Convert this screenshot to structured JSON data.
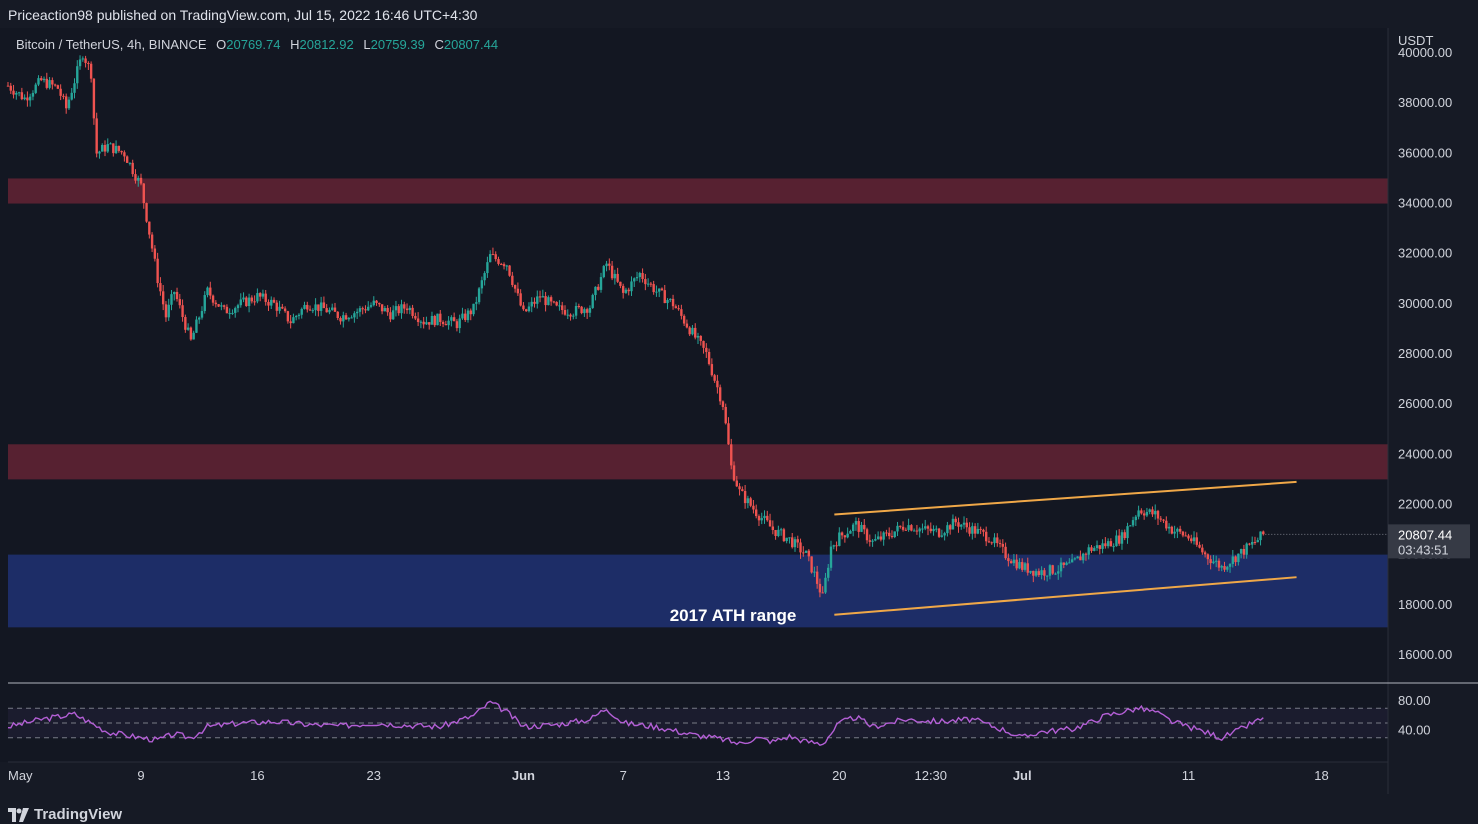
{
  "header": {
    "publisher_line": "Priceaction98 published on TradingView.com, Jul 15, 2022 16:46 UTC+4:30"
  },
  "legend": {
    "symbol": "Bitcoin / TetherUS, 4h, BINANCE",
    "o_label": "O",
    "o_value": "20769.74",
    "h_label": "H",
    "h_value": "20812.92",
    "l_label": "L",
    "l_value": "20759.39",
    "c_label": "C",
    "c_value": "20807.44"
  },
  "footer": {
    "brand": "TradingView"
  },
  "colors": {
    "background": "#131722",
    "up": "#26a69a",
    "down": "#ef5350",
    "resistance_zone": "#5b2233",
    "ath_zone": "#1e2e6b",
    "channel": "#f0a848",
    "rsi": "#b45fd6"
  },
  "chart_data": {
    "type": "candlestick",
    "title": "Bitcoin / TetherUS, 4h, BINANCE",
    "y_axis_unit": "USDT",
    "ylim": [
      15000,
      41000
    ],
    "y_ticks": [
      "40000.00",
      "38000.00",
      "36000.00",
      "34000.00",
      "32000.00",
      "30000.00",
      "28000.00",
      "26000.00",
      "24000.00",
      "22000.00",
      "20000.00",
      "18000.00",
      "16000.00"
    ],
    "y_tick_values": [
      40000,
      38000,
      36000,
      34000,
      32000,
      30000,
      28000,
      26000,
      24000,
      22000,
      20000,
      18000,
      16000
    ],
    "x_ticks": [
      "May",
      "9",
      "16",
      "23",
      "Jun",
      "7",
      "13",
      "20",
      "12:30",
      "Jul",
      "11",
      "18"
    ],
    "x_tick_days": [
      1,
      9,
      16,
      23,
      32,
      38,
      44,
      51,
      56.5,
      62,
      72,
      80
    ],
    "last_price": {
      "label": "20807.44",
      "value": 20807.44,
      "countdown": "03:43:51"
    },
    "price_path": [
      [
        1,
        38700
      ],
      [
        2,
        38200
      ],
      [
        3,
        38900
      ],
      [
        4,
        38600
      ],
      [
        4.5,
        37800
      ],
      [
        5.5,
        40000
      ],
      [
        6,
        39200
      ],
      [
        6.3,
        36000
      ],
      [
        7,
        36300
      ],
      [
        8,
        36000
      ],
      [
        9,
        34700
      ],
      [
        10,
        31000
      ],
      [
        10.5,
        29500
      ],
      [
        11,
        30500
      ],
      [
        12,
        28500
      ],
      [
        13,
        30500
      ],
      [
        14,
        29700
      ],
      [
        15,
        30000
      ],
      [
        16,
        30300
      ],
      [
        17,
        30000
      ],
      [
        18,
        29300
      ],
      [
        19,
        30000
      ],
      [
        20,
        29800
      ],
      [
        21,
        29500
      ],
      [
        22,
        29700
      ],
      [
        23,
        30000
      ],
      [
        24,
        29600
      ],
      [
        25,
        29900
      ],
      [
        26,
        29300
      ],
      [
        27,
        29400
      ],
      [
        28,
        29200
      ],
      [
        29,
        29800
      ],
      [
        30,
        31900
      ],
      [
        31,
        31600
      ],
      [
        32,
        29600
      ],
      [
        33,
        30300
      ],
      [
        34,
        29800
      ],
      [
        35,
        29700
      ],
      [
        36,
        29900
      ],
      [
        37,
        31600
      ],
      [
        38,
        30400
      ],
      [
        39,
        31200
      ],
      [
        40,
        30500
      ],
      [
        41,
        30000
      ],
      [
        42,
        29000
      ],
      [
        43,
        28000
      ],
      [
        44,
        26000
      ],
      [
        44.5,
        23500
      ],
      [
        45,
        22500
      ],
      [
        46,
        21700
      ],
      [
        47,
        21000
      ],
      [
        48,
        20600
      ],
      [
        49,
        20000
      ],
      [
        49.5,
        19200
      ],
      [
        50,
        18300
      ],
      [
        50.5,
        20300
      ],
      [
        51,
        20700
      ],
      [
        52,
        21200
      ],
      [
        53,
        20500
      ],
      [
        54,
        20800
      ],
      [
        55,
        21200
      ],
      [
        56,
        21000
      ],
      [
        57,
        20900
      ],
      [
        58,
        21300
      ],
      [
        59,
        21000
      ],
      [
        60,
        20700
      ],
      [
        61,
        20000
      ],
      [
        62,
        19500
      ],
      [
        63,
        19300
      ],
      [
        64,
        19400
      ],
      [
        65,
        19600
      ],
      [
        66,
        20200
      ],
      [
        67,
        20400
      ],
      [
        68,
        20700
      ],
      [
        69,
        21800
      ],
      [
        70,
        21600
      ],
      [
        71,
        21000
      ],
      [
        72,
        20700
      ],
      [
        73,
        20000
      ],
      [
        74,
        19500
      ],
      [
        75,
        20000
      ],
      [
        76,
        20500
      ],
      [
        76.5,
        20800
      ]
    ],
    "zones": [
      {
        "name": "resistance",
        "low": 34000,
        "high": 35000
      },
      {
        "name": "resistance",
        "low": 23000,
        "high": 24400
      },
      {
        "name": "2017 ATH range",
        "low": 17100,
        "high": 20000
      }
    ],
    "annotation": "2017 ATH range",
    "channel": {
      "upper": [
        [
          50.7,
          21600
        ],
        [
          78.5,
          22900
        ]
      ],
      "lower": [
        [
          50.7,
          17600
        ],
        [
          78.5,
          19100
        ]
      ]
    },
    "rsi": {
      "y_ticks": [
        "80.00",
        "40.00"
      ],
      "y_tick_values": [
        80,
        40
      ],
      "upper_band": 70,
      "lower_band": 30,
      "values": [
        [
          1,
          45
        ],
        [
          3,
          55
        ],
        [
          5,
          62
        ],
        [
          6,
          50
        ],
        [
          7,
          38
        ],
        [
          9,
          30
        ],
        [
          10,
          27
        ],
        [
          11,
          35
        ],
        [
          12,
          30
        ],
        [
          13,
          45
        ],
        [
          15,
          50
        ],
        [
          17,
          52
        ],
        [
          19,
          48
        ],
        [
          21,
          46
        ],
        [
          23,
          50
        ],
        [
          25,
          47
        ],
        [
          27,
          45
        ],
        [
          29,
          60
        ],
        [
          30,
          78
        ],
        [
          31,
          65
        ],
        [
          32,
          45
        ],
        [
          34,
          48
        ],
        [
          36,
          55
        ],
        [
          37,
          70
        ],
        [
          38,
          50
        ],
        [
          40,
          45
        ],
        [
          42,
          35
        ],
        [
          44,
          28
        ],
        [
          45,
          22
        ],
        [
          46,
          30
        ],
        [
          47,
          25
        ],
        [
          48,
          32
        ],
        [
          49,
          25
        ],
        [
          50,
          22
        ],
        [
          51,
          50
        ],
        [
          52,
          58
        ],
        [
          53,
          45
        ],
        [
          55,
          55
        ],
        [
          57,
          52
        ],
        [
          59,
          55
        ],
        [
          61,
          40
        ],
        [
          62,
          30
        ],
        [
          63,
          38
        ],
        [
          65,
          42
        ],
        [
          66,
          50
        ],
        [
          67,
          60
        ],
        [
          69,
          70
        ],
        [
          70,
          65
        ],
        [
          71,
          52
        ],
        [
          72,
          45
        ],
        [
          73,
          38
        ],
        [
          74,
          30
        ],
        [
          75,
          40
        ],
        [
          76,
          52
        ],
        [
          76.5,
          55
        ]
      ]
    }
  }
}
